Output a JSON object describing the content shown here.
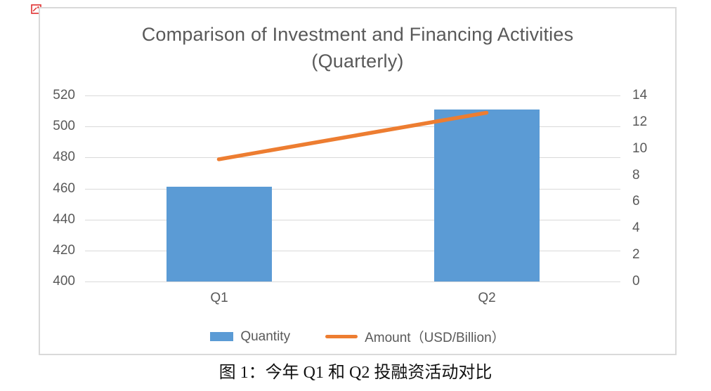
{
  "page": {
    "caption": "图 1：今年 Q1 和 Q2 投融资活动对比",
    "corner_icon": "broken-image-marker",
    "background": "#FFFFFF"
  },
  "chart": {
    "title_line1": "Comparison of Investment and Financing Activities",
    "title_line2": "(Quarterly)",
    "title_color": "#595959",
    "axis_label_color": "#595959",
    "gridline_color": "#D9D9D9",
    "panel_border_color": "#D9D9D9"
  },
  "chart_data": {
    "type": "combo",
    "title": "Comparison of Investment and Financing Activities (Quarterly)",
    "categories": [
      "Q1",
      "Q2"
    ],
    "series": [
      {
        "name": "Quantity",
        "type": "bar",
        "axis": "left",
        "values": [
          461,
          511
        ],
        "color": "#5B9BD5"
      },
      {
        "name": "Amount（USD/Billion）",
        "type": "line",
        "axis": "right",
        "values": [
          9.2,
          12.7
        ],
        "color": "#ED7D31"
      }
    ],
    "left_axis": {
      "ticks": [
        520,
        500,
        480,
        460,
        440,
        420,
        400
      ],
      "min": 400,
      "max": 520
    },
    "right_axis": {
      "ticks": [
        14,
        12,
        10,
        8,
        6,
        4,
        2,
        0
      ],
      "min": 0,
      "max": 14
    },
    "grid": true,
    "legend_position": "bottom"
  }
}
